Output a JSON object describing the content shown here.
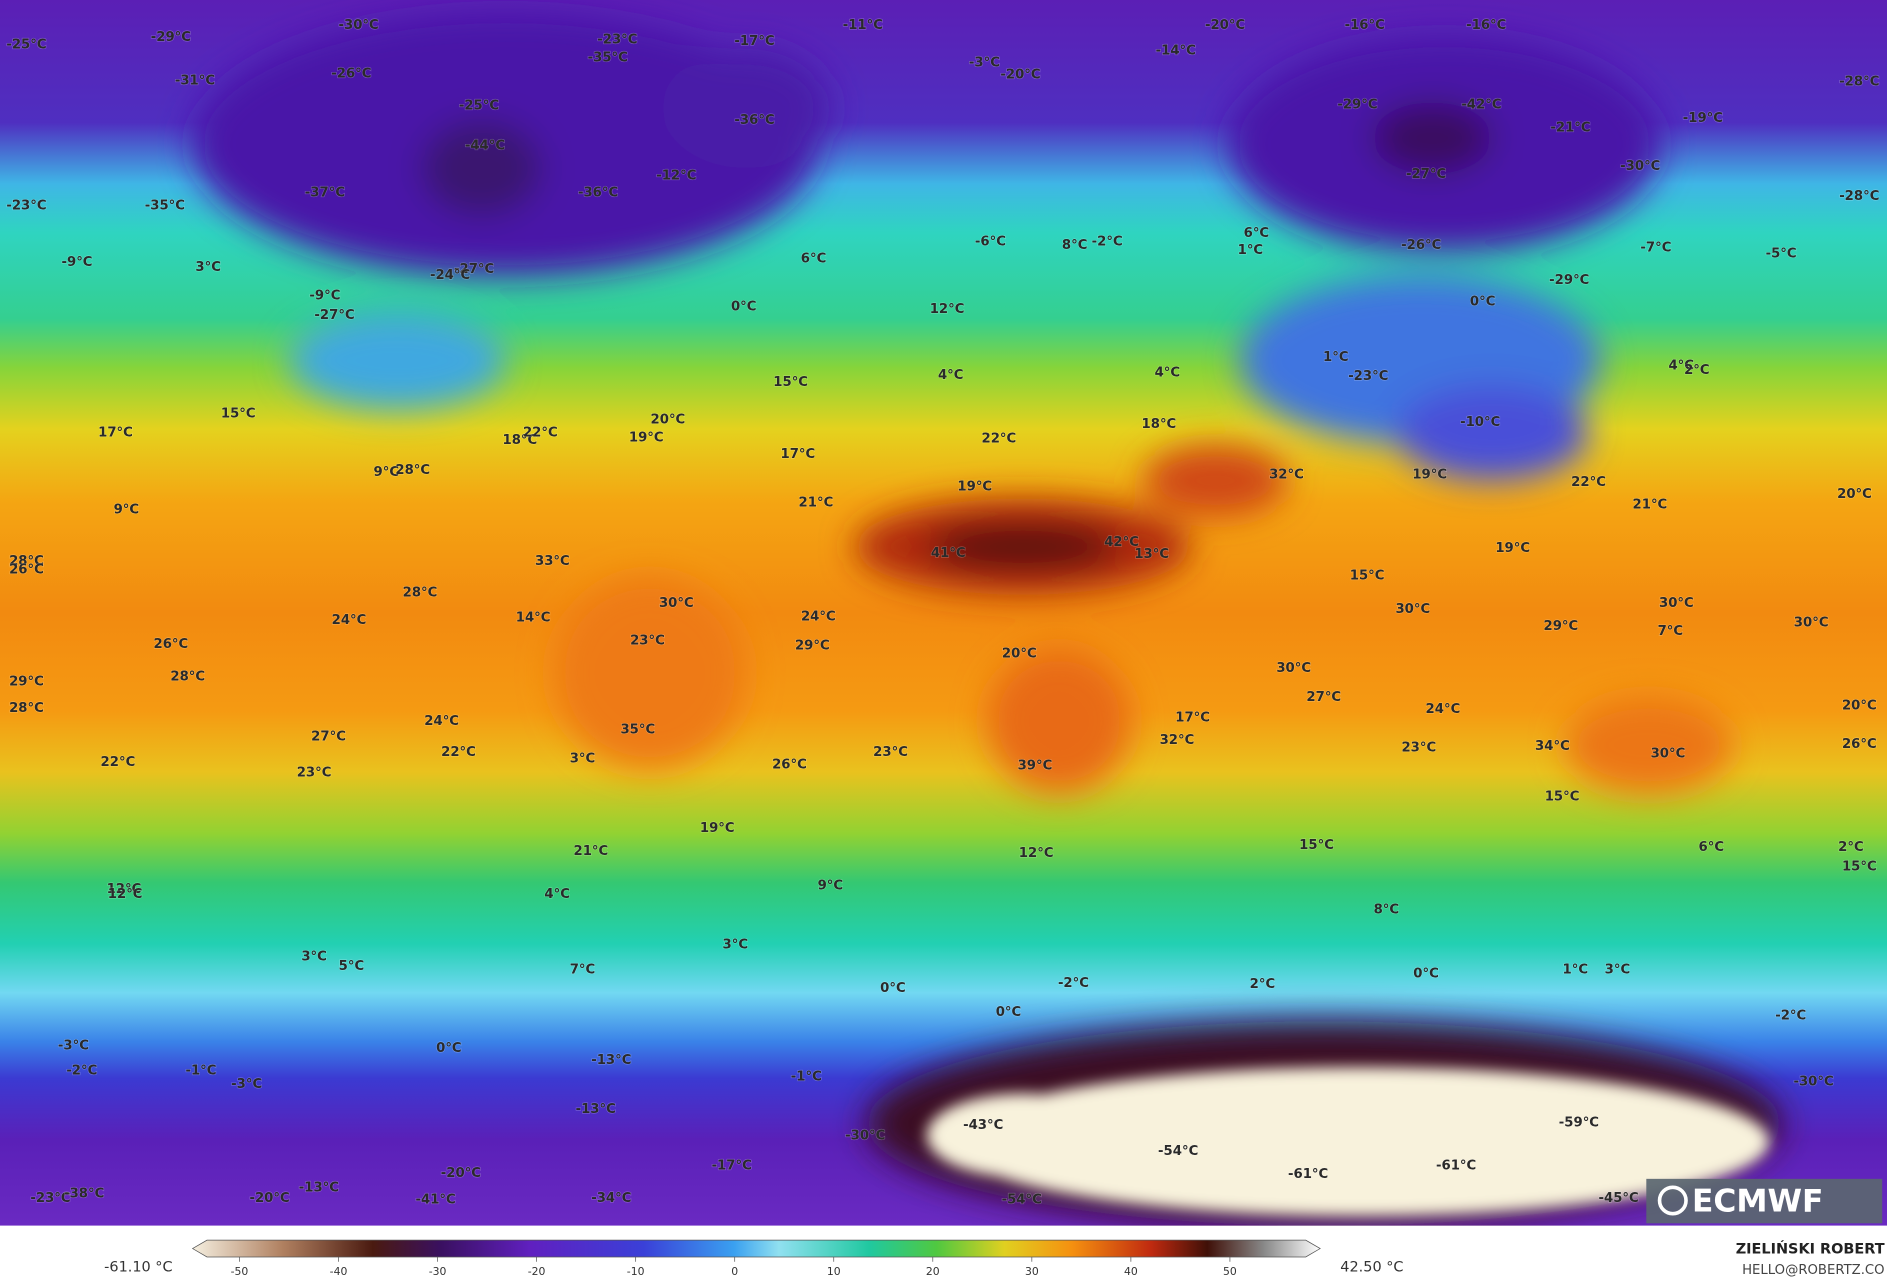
{
  "labels": [
    "-25°C",
    "-29°C",
    "-30°C",
    "-23°C",
    "-35°C",
    "-17°C",
    "-11°C",
    "-20°C",
    "-16°C",
    "-16°C",
    "-28°C",
    "-31°C",
    "-26°C",
    "-25°C",
    "-44°C",
    "-36°C",
    "-3°C",
    "-20°C",
    "-14°C",
    "-29°C",
    "-42°C",
    "-21°C",
    "-19°C",
    "-30°C",
    "-27°C",
    "-28°C",
    "-23°C",
    "-35°C",
    "-37°C",
    "-36°C",
    "-12°C",
    "-9°C",
    "3°C",
    "-27°C",
    "-24°C",
    "-9°C",
    "-27°C",
    "6°C",
    "0°C",
    "-6°C",
    "8°C",
    "-2°C",
    "6°C",
    "1°C",
    "-26°C",
    "-29°C",
    "-7°C",
    "-5°C",
    "0°C",
    "12°C",
    "1°C",
    "-23°C",
    "4°C",
    "2°C",
    "4°C",
    "4°C",
    "15°C",
    "15°C",
    "17°C",
    "20°C",
    "19°C",
    "18°C",
    "22°C",
    "17°C",
    "22°C",
    "18°C",
    "-10°C",
    "9°C",
    "28°C",
    "19°C",
    "32°C",
    "19°C",
    "22°C",
    "21°C",
    "20°C",
    "21°C",
    "9°C",
    "28°C",
    "26°C",
    "33°C",
    "41°C",
    "42°C",
    "13°C",
    "19°C",
    "15°C",
    "28°C",
    "30°C",
    "24°C",
    "14°C",
    "24°C",
    "30°C",
    "30°C",
    "30°C",
    "29°C",
    "7°C",
    "26°C",
    "23°C",
    "29°C",
    "20°C",
    "30°C",
    "29°C",
    "28°C",
    "28°C",
    "27°C",
    "24°C",
    "20°C",
    "24°C",
    "27°C",
    "35°C",
    "17°C",
    "32°C",
    "34°C",
    "30°C",
    "26°C",
    "22°C",
    "23°C",
    "22°C",
    "3°C",
    "26°C",
    "23°C",
    "23°C",
    "39°C",
    "15°C",
    "19°C",
    "21°C",
    "12°C",
    "15°C",
    "6°C",
    "2°C",
    "15°C",
    "12°C",
    "12°C",
    "4°C",
    "9°C",
    "8°C",
    "3°C",
    "5°C",
    "7°C",
    "3°C",
    "1°C",
    "3°C",
    "0°C",
    "0°C",
    "-2°C",
    "2°C",
    "0°C",
    "-2°C",
    "-3°C",
    "0°C",
    "-2°C",
    "-1°C",
    "-3°C",
    "-13°C",
    "-1°C",
    "-30°C",
    "-13°C",
    "-43°C",
    "-59°C",
    "-30°C",
    "-54°C",
    "-61°C",
    "-61°C",
    "-17°C",
    "-20°C",
    "-13°C",
    "-20°C",
    "-41°C",
    "-23°C",
    "-38°C",
    "-34°C",
    "-54°C",
    "-45°C"
  ],
  "colorbar": {
    "min_label": "-61.10 °C",
    "max_label": "42.50 °C",
    "ticks": [
      -50,
      -40,
      -30,
      -20,
      -10,
      0,
      10,
      20,
      30,
      40,
      50
    ]
  },
  "logo": "ECMWF",
  "credit": {
    "name": "ZIELIŃSKI ROBERT",
    "contact": "HELLO@ROBERTZ.CO"
  }
}
